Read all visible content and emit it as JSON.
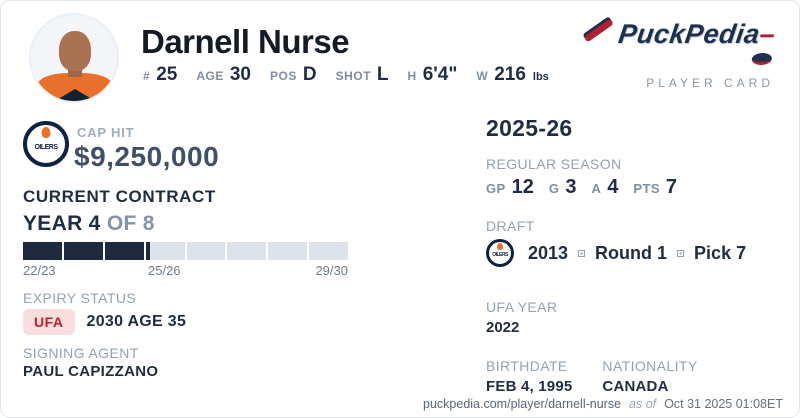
{
  "header": {
    "name": "Darnell Nurse",
    "vitals": [
      {
        "label": "#",
        "value": "25"
      },
      {
        "label": "AGE",
        "value": "30"
      },
      {
        "label": "POS",
        "value": "D"
      },
      {
        "label": "SHOT",
        "value": "L"
      },
      {
        "label": "H",
        "value": "6'4\""
      },
      {
        "label": "W",
        "value": "216",
        "suffix": "lbs"
      }
    ],
    "brand": {
      "wordmark": "PuckPedia",
      "subtitle": "PLAYER CARD"
    }
  },
  "left": {
    "team_logo": "edmonton-oilers",
    "team_logo_text": "OILERS",
    "cap_hit_label": "CAP HIT",
    "cap_hit_value": "$9,250,000",
    "contract_title": "CURRENT CONTRACT",
    "year_current": "YEAR 4",
    "year_total": "OF 8",
    "bar": {
      "segments_total": 8,
      "segments_filled": 3,
      "partial_fill": 0.1,
      "labels": [
        "22/23",
        "25/26",
        "29/30"
      ]
    },
    "expiry_label": "EXPIRY STATUS",
    "expiry_badge": "UFA",
    "expiry_value": "2030 AGE 35",
    "agent_label": "SIGNING AGENT",
    "agent_value": "PAUL CAPIZZANO"
  },
  "right": {
    "season_title": "2025-26",
    "season_label": "REGULAR SEASON",
    "season_stats": [
      {
        "label": "GP",
        "value": "12"
      },
      {
        "label": "G",
        "value": "3"
      },
      {
        "label": "A",
        "value": "4"
      },
      {
        "label": "PTS",
        "value": "7"
      }
    ],
    "draft_label": "DRAFT",
    "draft_year": "2013",
    "draft_round": "Round 1",
    "draft_pick": "Pick 7",
    "ufa_year_label": "UFA YEAR",
    "ufa_year_value": "2022",
    "birthdate_label": "BIRTHDATE",
    "birthdate_value": "FEB 4, 1995",
    "nationality_label": "NATIONALITY",
    "nationality_value": "CANADA"
  },
  "footer": {
    "url": "puckpedia.com/player/darnell-nurse",
    "as_of_label": "as of",
    "timestamp": "Oct 31 2025 01:08ET"
  },
  "colors": {
    "navy_text": "#1f2c43",
    "muted_label": "#93a1b5",
    "bar_filled": "#1e2a3d",
    "bar_empty": "#dde3ea",
    "ufa_badge_bg": "#fbdddd",
    "ufa_badge_text": "#b3262c",
    "brand_navy": "#1d3050",
    "brand_red": "#b31f2e",
    "oilers_orange": "#e8702a"
  }
}
